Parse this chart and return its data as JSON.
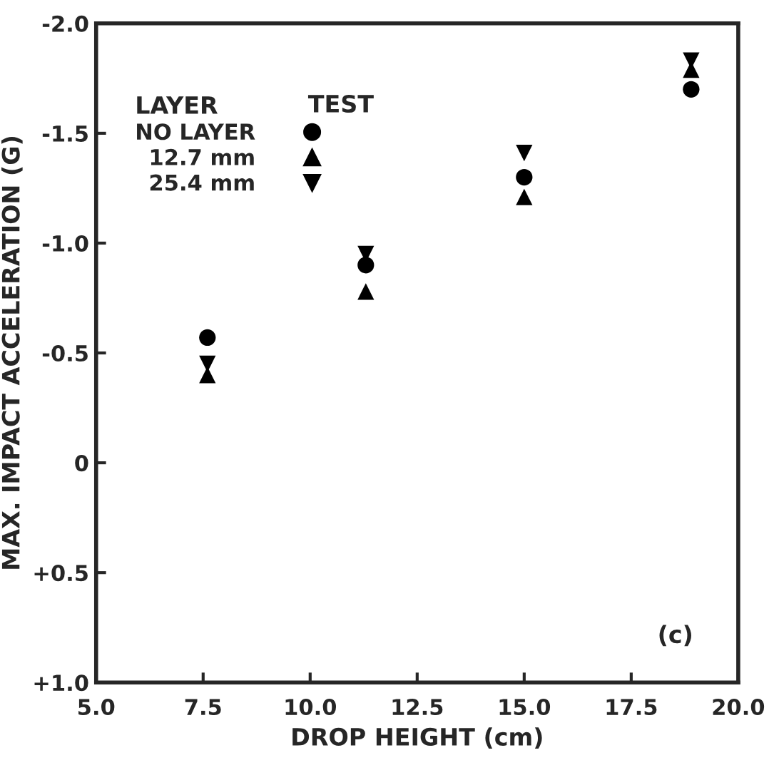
{
  "chart_data": {
    "type": "scatter",
    "xlabel": "DROP HEIGHT (cm)",
    "ylabel": "MAX. IMPACT ACCELERATION (G)",
    "legend_title": "LAYER",
    "annotations": [
      "TEST",
      "(c)"
    ],
    "series": [
      {
        "name": "NO LAYER",
        "color": "#000000",
        "marker": "circle",
        "x": [
          7.6,
          11.3,
          15.0,
          18.9
        ],
        "values": [
          -0.57,
          -0.9,
          -1.3,
          -1.7
        ]
      },
      {
        "name": "12.7 mm",
        "color": "#000000",
        "marker": "triangle",
        "x": [
          7.6,
          11.3,
          15.0,
          18.9
        ],
        "values": [
          -0.4,
          -0.78,
          -1.21,
          -1.79
        ]
      },
      {
        "name": "25.4 mm",
        "color": "#000000",
        "marker": "triangle_down",
        "x": [
          7.6,
          11.3,
          15.0,
          18.9
        ],
        "values": [
          -0.45,
          -0.95,
          -1.41,
          -1.83
        ]
      }
    ],
    "xlim": [
      5.0,
      20.0
    ],
    "xticks": [
      {
        "value": 5.0,
        "label": "5.0"
      },
      {
        "value": 7.5,
        "label": "7.5"
      },
      {
        "value": 10.0,
        "label": "10.0"
      },
      {
        "value": 12.5,
        "label": "12.5"
      },
      {
        "value": 15.0,
        "label": "15.0"
      },
      {
        "value": 17.5,
        "label": "17.5"
      },
      {
        "value": 20.0,
        "label": "20.0"
      }
    ],
    "ylim": [
      1.0,
      -2.0
    ],
    "yticks": [
      {
        "value": -2.0,
        "label": "-2.0"
      },
      {
        "value": -1.5,
        "label": "-1.5"
      },
      {
        "value": -1.0,
        "label": "-1.0"
      },
      {
        "value": -0.5,
        "label": "-0.5"
      },
      {
        "value": 0,
        "label": "0"
      },
      {
        "value": 0.5,
        "label": "+0.5"
      },
      {
        "value": 1.0,
        "label": "+1.0"
      }
    ],
    "legend": "top left",
    "grid": false
  }
}
